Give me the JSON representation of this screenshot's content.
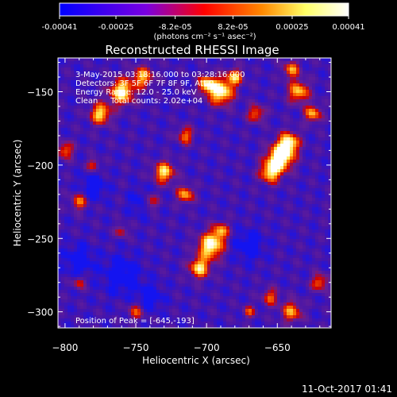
{
  "colorbar": {
    "tick_labels": [
      "-0.00041",
      "-0.00025",
      "-8.2e-05",
      "8.2e-05",
      "0.00025",
      "0.00041"
    ],
    "tick_values": [
      -0.00041,
      -0.00025,
      -8.2e-05,
      8.2e-05,
      0.00025,
      0.00041
    ],
    "range": [
      -0.00041,
      0.00041
    ],
    "unit_label": "(photons cm⁻² s⁻¹ asec⁻²)",
    "colors": [
      "#0000ff",
      "#7a00e0",
      "#ff0000",
      "#ff8800",
      "#ffff66",
      "#ffffff"
    ]
  },
  "chart_data": {
    "type": "heatmap",
    "title": "Reconstructed RHESSI Image",
    "xlabel": "Heliocentric X (arcsec)",
    "ylabel": "Heliocentric Y (arcsec)",
    "xlim": [
      -805,
      -612
    ],
    "ylim": [
      -311,
      -127
    ],
    "xticks": [
      -800,
      -750,
      -700,
      -650
    ],
    "yticks": [
      -150,
      -200,
      -250,
      -300
    ],
    "xtick_labels": [
      "−800",
      "−750",
      "−700",
      "−650"
    ],
    "ytick_labels": [
      "−150",
      "−200",
      "−250",
      "−300"
    ],
    "annotations": [
      "3-May-2015 03:18:16.000 to 03:28:16.000",
      "Detectors: 3F 5F 6F 7F 8F 9F, Att 0",
      "Energy Range: 12.0 - 25.0 keV",
      "Clean     Total counts: 2.02e+04"
    ],
    "peak_label": "Position of Peak = [-645,-193]",
    "peak_position": [
      -645,
      -193
    ],
    "value_range": [
      -0.00041,
      0.00041
    ]
  },
  "footer": {
    "timestamp": "11-Oct-2017 01:41"
  }
}
